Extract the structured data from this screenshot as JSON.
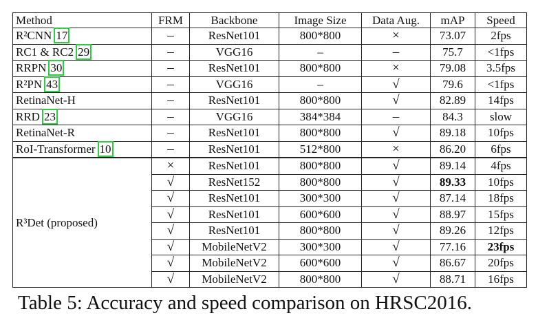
{
  "header": [
    "Method",
    "FRM",
    "Backbone",
    "Image Size",
    "Data Aug.",
    "mAP",
    "Speed"
  ],
  "rows": [
    {
      "method": "R²CNN",
      "cite": "17",
      "cells": [
        "–",
        "ResNet101",
        "800*800",
        "×",
        "73.07",
        "2fps"
      ]
    },
    {
      "method": "RC1 & RC2",
      "cite": "29",
      "cells": [
        "–",
        "VGG16",
        "–",
        "–",
        "75.7",
        "<1fps"
      ]
    },
    {
      "method": "RRPN",
      "cite": "30",
      "cells": [
        "–",
        "ResNet101",
        "800*800",
        "×",
        "79.08",
        "3.5fps"
      ]
    },
    {
      "method": "R²PN",
      "cite": "43",
      "cells": [
        "–",
        "VGG16",
        "–",
        "√",
        "79.6",
        "<1fps"
      ]
    },
    {
      "method": "RetinaNet-H",
      "cells": [
        "–",
        "ResNet101",
        "800*800",
        "√",
        "82.89",
        "14fps"
      ]
    },
    {
      "method": "RRD",
      "cite": "23",
      "cells": [
        "–",
        "VGG16",
        "384*384",
        "–",
        "84.3",
        "slow"
      ]
    },
    {
      "method": "RetinaNet-R",
      "cells": [
        "–",
        "ResNet101",
        "800*800",
        "√",
        "89.18",
        "10fps"
      ]
    },
    {
      "method": "RoI-Transformer",
      "cite": "10",
      "cells": [
        "–",
        "ResNet101",
        "512*800",
        "×",
        "86.20",
        "6fps"
      ]
    }
  ],
  "group": {
    "method": "R³Det (proposed)",
    "rows": [
      [
        "×",
        "ResNet101",
        "800*800",
        "√",
        "89.14",
        "4fps"
      ],
      [
        "√",
        "ResNet152",
        "800*800",
        "√",
        "89.33",
        "10fps"
      ],
      [
        "√",
        "ResNet101",
        "300*300",
        "√",
        "87.14",
        "18fps"
      ],
      [
        "√",
        "ResNet101",
        "600*600",
        "√",
        "88.97",
        "15fps"
      ],
      [
        "√",
        "ResNet101",
        "800*800",
        "√",
        "89.26",
        "12fps"
      ],
      [
        "√",
        "MobileNetV2",
        "300*300",
        "√",
        "77.16",
        "23fps"
      ],
      [
        "√",
        "MobileNetV2",
        "600*600",
        "√",
        "86.67",
        "20fps"
      ],
      [
        "√",
        "MobileNetV2",
        "800*800",
        "√",
        "88.71",
        "16fps"
      ]
    ]
  },
  "caption": "Table 5: Accuracy and speed comparison on HRSC2016."
}
